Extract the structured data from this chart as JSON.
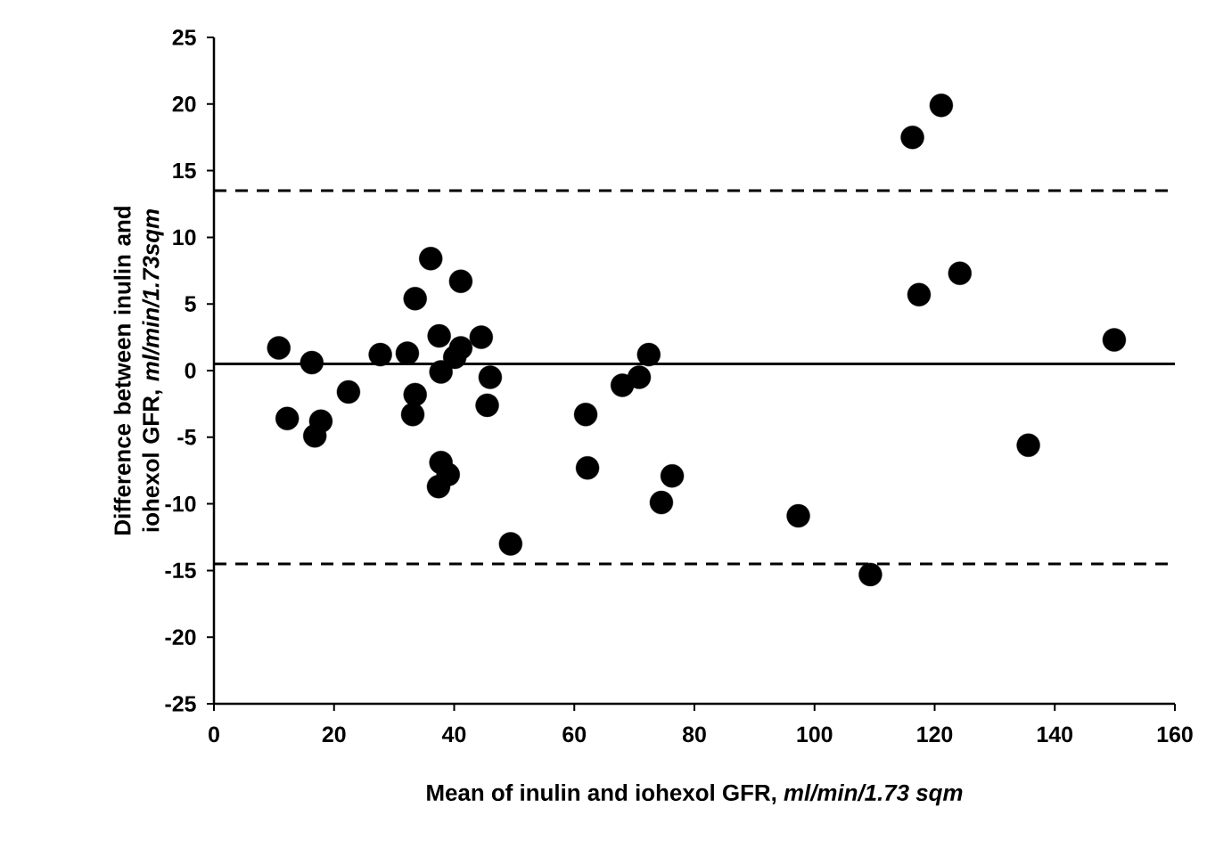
{
  "chart_data": {
    "type": "scatter",
    "xlabel": "Mean of inulin and iohexol GFR, *ml/min/1.73 sqm*",
    "ylabel": "Difference between inulin and iohexol GFR, *ml/min/1.73sqm*",
    "x": [
      10.8,
      12.2,
      16.3,
      16.8,
      17.8,
      22.4,
      27.7,
      32.2,
      33.5,
      36.1,
      41.1,
      37.5,
      37.8,
      44.5,
      41.1,
      40.1,
      46,
      45.5,
      33.5,
      33.1,
      37.8,
      39,
      37.4,
      49.4,
      72.4,
      70.8,
      68,
      61.9,
      62.2,
      76.3,
      74.5,
      97.3,
      109.3,
      121.1,
      116.3,
      124.2,
      117.4,
      149.9,
      135.6
    ],
    "values": [
      1.7,
      -3.6,
      0.6,
      -4.9,
      -3.8,
      -1.6,
      1.2,
      1.3,
      5.4,
      8.4,
      6.7,
      2.6,
      -0.1,
      2.5,
      1.7,
      1.0,
      -0.5,
      -2.6,
      -1.8,
      -3.3,
      -6.9,
      -7.8,
      -8.7,
      -13,
      1.2,
      -0.5,
      -1.1,
      -3.3,
      -7.3,
      -7.9,
      -9.9,
      -10.9,
      -15.3,
      19.9,
      17.5,
      7.3,
      5.7,
      2.3,
      -5.6
    ],
    "color": "#000000",
    "marker": "circle",
    "xlim": [
      0,
      160
    ],
    "ylim": [
      -25,
      25
    ],
    "xticks": [
      0,
      20,
      40,
      60,
      80,
      100,
      120,
      140,
      160
    ],
    "yticks": [
      -25,
      -20,
      -15,
      -10,
      -5,
      0,
      5,
      10,
      15,
      20,
      25
    ],
    "ref_lines": [
      {
        "axis": "y",
        "value": 13.5,
        "line_style": "dashed",
        "color": "#000000"
      },
      {
        "axis": "y",
        "value": 0.5,
        "line_style": "solid",
        "color": "#000000"
      },
      {
        "axis": "y",
        "value": -14.5,
        "line_style": "dashed",
        "color": "#000000"
      }
    ]
  }
}
